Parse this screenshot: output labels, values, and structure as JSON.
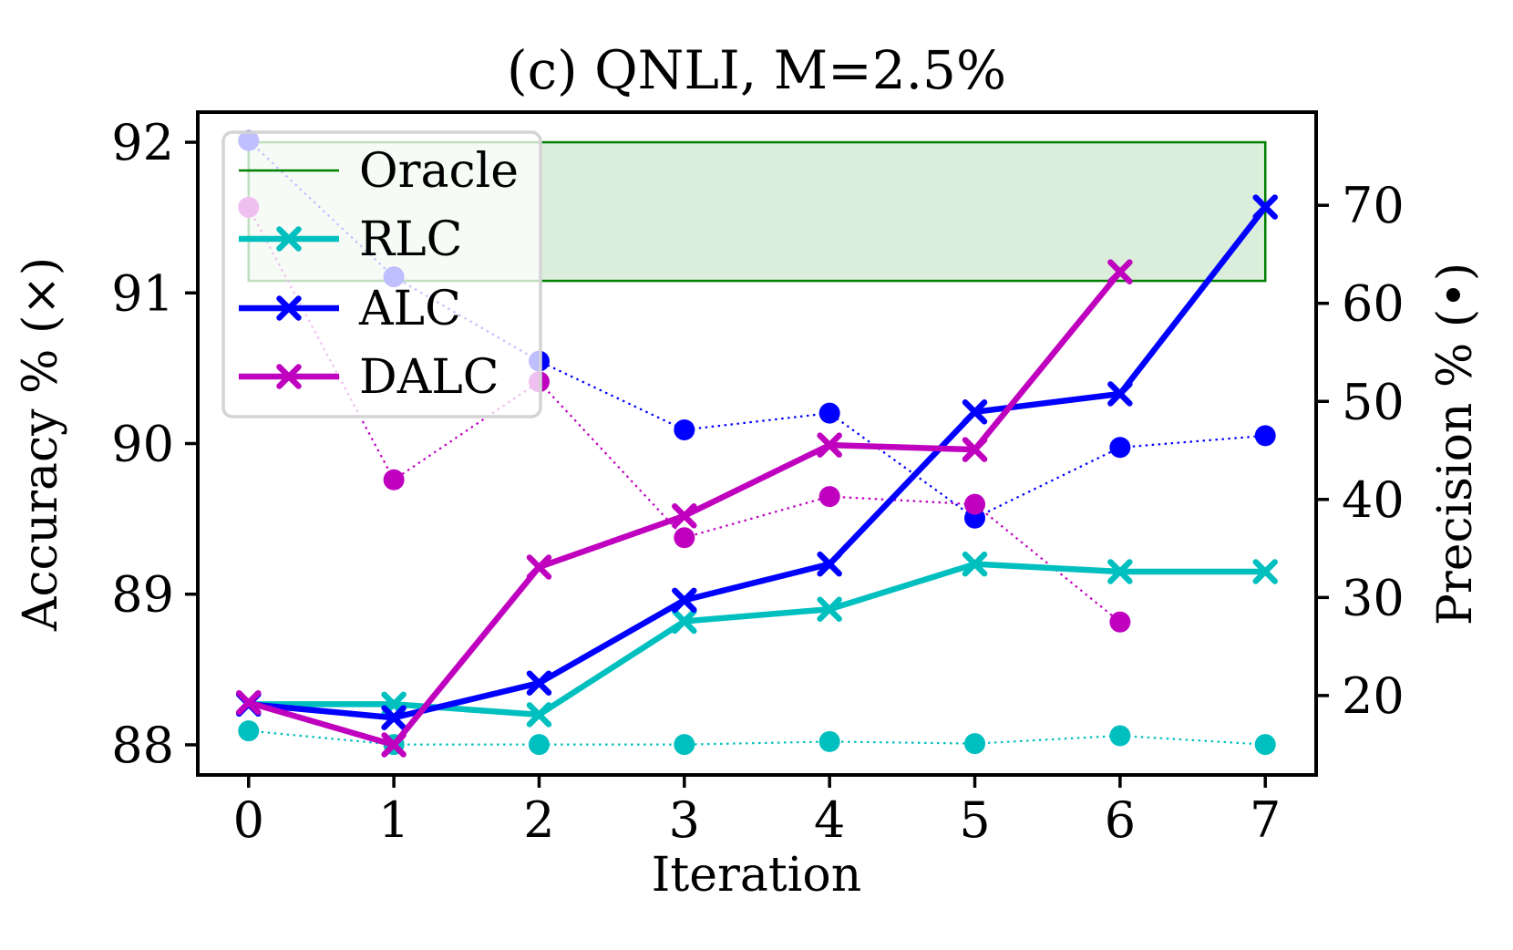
{
  "chart_data": {
    "type": "line",
    "title": "(c) QNLI, M=2.5%",
    "xlabel": "Iteration",
    "ylabel_left": "Accuracy % (×)",
    "ylabel_right": "Precision % (•)",
    "x_ticks": [
      "0",
      "1",
      "2",
      "3",
      "4",
      "5",
      "6",
      "7"
    ],
    "left_y_ticks": [
      "88",
      "89",
      "90",
      "91",
      "92"
    ],
    "right_y_ticks": [
      "20",
      "30",
      "40",
      "50",
      "60",
      "70"
    ],
    "xlim": [
      -0.35,
      7.35
    ],
    "left_ylim": [
      87.8,
      92.2
    ],
    "right_ylim": [
      11.9,
      79.5
    ],
    "grid": false,
    "legend_position": "upper left",
    "oracle_band": {
      "label": "Oracle",
      "low": 91.08,
      "high": 92.0,
      "color": "#008000",
      "fill_opacity": 0.14
    },
    "series": [
      {
        "id": "rlc-precision",
        "name": "RLC precision",
        "color": "#00bfbf",
        "axis": "right",
        "style": "dotted",
        "marker": "dot",
        "x": [
          0,
          1,
          2,
          3,
          4,
          5,
          6,
          7
        ],
        "values": [
          16.4,
          15.0,
          15.0,
          15.0,
          15.3,
          15.1,
          15.9,
          15.0
        ]
      },
      {
        "id": "alc-precision",
        "name": "ALC precision",
        "color": "#0000ff",
        "axis": "right",
        "style": "dotted",
        "marker": "dot",
        "x": [
          0,
          1,
          2,
          3,
          4,
          5,
          6,
          7
        ],
        "values": [
          76.6,
          62.7,
          54.1,
          47.1,
          48.8,
          38.1,
          45.3,
          46.5
        ]
      },
      {
        "id": "dalc-precision",
        "name": "DALC precision",
        "color": "#bf00bf",
        "axis": "right",
        "style": "dotted",
        "marker": "dot",
        "x": [
          0,
          1,
          2,
          3,
          4,
          5,
          6
        ],
        "values": [
          69.8,
          42.0,
          52.0,
          36.1,
          40.3,
          39.5,
          27.5
        ]
      },
      {
        "id": "rlc-accuracy",
        "name": "RLC",
        "color": "#00bfbf",
        "axis": "left",
        "style": "solid",
        "marker": "x",
        "x": [
          0,
          1,
          2,
          3,
          4,
          5,
          6,
          7
        ],
        "values": [
          88.27,
          88.27,
          88.2,
          88.82,
          88.9,
          89.2,
          89.15,
          89.15
        ]
      },
      {
        "id": "alc-accuracy",
        "name": "ALC",
        "color": "#0000ff",
        "axis": "left",
        "style": "solid",
        "marker": "x",
        "x": [
          0,
          1,
          2,
          3,
          4,
          5,
          6,
          7
        ],
        "values": [
          88.27,
          88.18,
          88.41,
          88.96,
          89.2,
          90.21,
          90.33,
          91.57
        ]
      },
      {
        "id": "dalc-accuracy",
        "name": "DALC",
        "color": "#bf00bf",
        "axis": "left",
        "style": "solid",
        "marker": "x",
        "x": [
          0,
          1,
          2,
          3,
          4,
          5,
          6
        ],
        "values": [
          88.28,
          88.0,
          89.18,
          89.52,
          89.99,
          89.96,
          91.14
        ]
      }
    ],
    "legend_items": [
      {
        "label": "Oracle",
        "color": "#008000",
        "marker": "none"
      },
      {
        "label": "RLC",
        "color": "#00bfbf",
        "marker": "x"
      },
      {
        "label": "ALC",
        "color": "#0000ff",
        "marker": "x"
      },
      {
        "label": "DALC",
        "color": "#bf00bf",
        "marker": "x"
      }
    ]
  }
}
